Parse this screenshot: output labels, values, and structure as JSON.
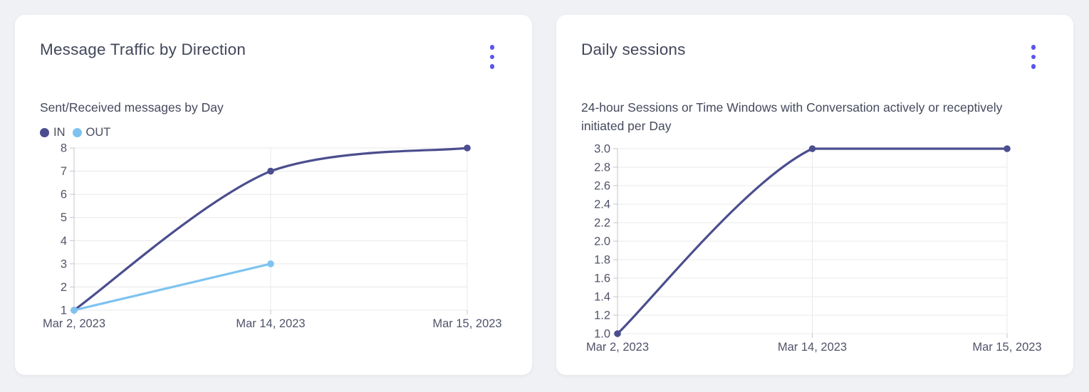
{
  "colors": {
    "accent": "#5a55ee",
    "axis": "#c2c4c9",
    "grid": "#e8e8eb",
    "tick_text": "#50536a"
  },
  "cards": [
    {
      "menu_icon": "kebab-menu-icon"
    },
    {
      "menu_icon": "kebab-menu-icon"
    }
  ],
  "chart_data": [
    {
      "type": "line",
      "title": "Message Traffic by Direction",
      "subtitle": "Sent/Received messages by Day",
      "categories": [
        "Mar 2, 2023",
        "Mar 14, 2023",
        "Mar 15, 2023"
      ],
      "series": [
        {
          "name": "IN",
          "color": "#4b4e8e",
          "values": [
            1,
            7,
            8
          ]
        },
        {
          "name": "OUT",
          "color": "#7ec3ef",
          "values": [
            1,
            3,
            null
          ]
        }
      ],
      "ylim": [
        1,
        8
      ],
      "yticks": [
        "1",
        "2",
        "3",
        "4",
        "5",
        "6",
        "7",
        "8"
      ],
      "grid": true,
      "legend_position": "top-left"
    },
    {
      "type": "line",
      "title": "Daily sessions",
      "subtitle": "24-hour Sessions or Time Windows with Conversation actively or receptively initiated per Day",
      "categories": [
        "Mar 2, 2023",
        "Mar 14, 2023",
        "Mar 15, 2023"
      ],
      "series": [
        {
          "name": "Sessions",
          "color": "#4b4e8e",
          "values": [
            1,
            3,
            3
          ]
        }
      ],
      "ylim": [
        1,
        3
      ],
      "yticks": [
        "1.0",
        "1.2",
        "1.4",
        "1.6",
        "1.8",
        "2.0",
        "2.2",
        "2.4",
        "2.6",
        "2.8",
        "3.0"
      ],
      "grid": true,
      "legend_position": "none"
    }
  ]
}
